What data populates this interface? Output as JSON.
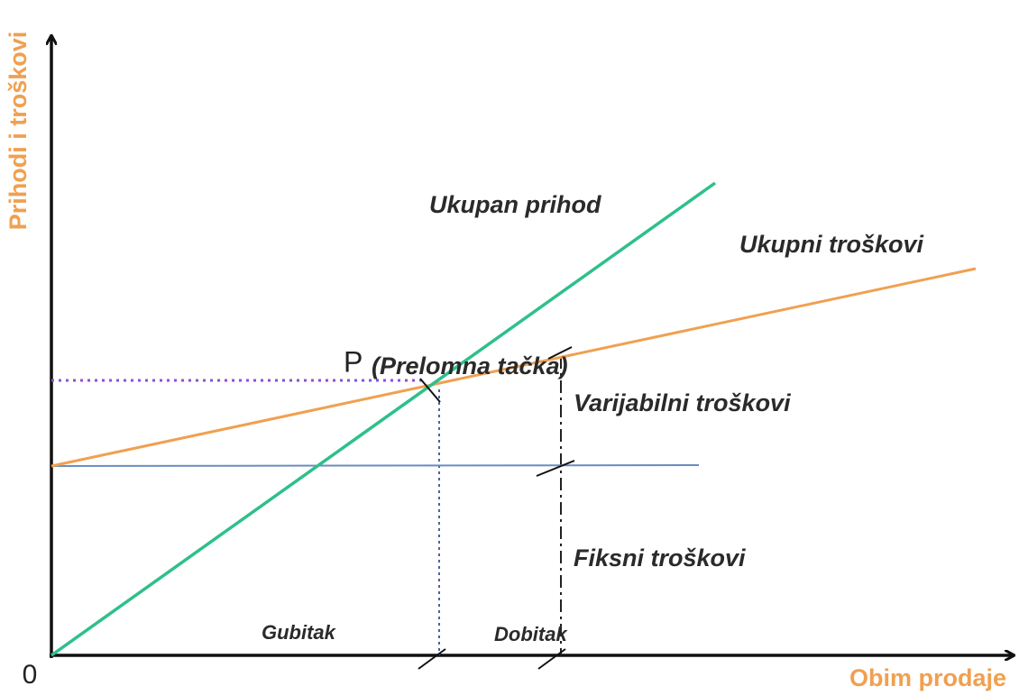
{
  "diagram": {
    "y_axis_label": "Prihodi i troškovi",
    "x_axis_label": "Obim prodaje",
    "origin_label": "0",
    "labels": {
      "total_revenue": "Ukupan prihod",
      "total_costs": "Ukupni troškovi",
      "point": "P",
      "break_even": "(Prelomna tačka)",
      "variable_costs": "Varijabilni troškovi",
      "fixed_costs": "Fiksni troškovi",
      "loss": "Gubitak",
      "profit": "Dobitak"
    }
  }
}
